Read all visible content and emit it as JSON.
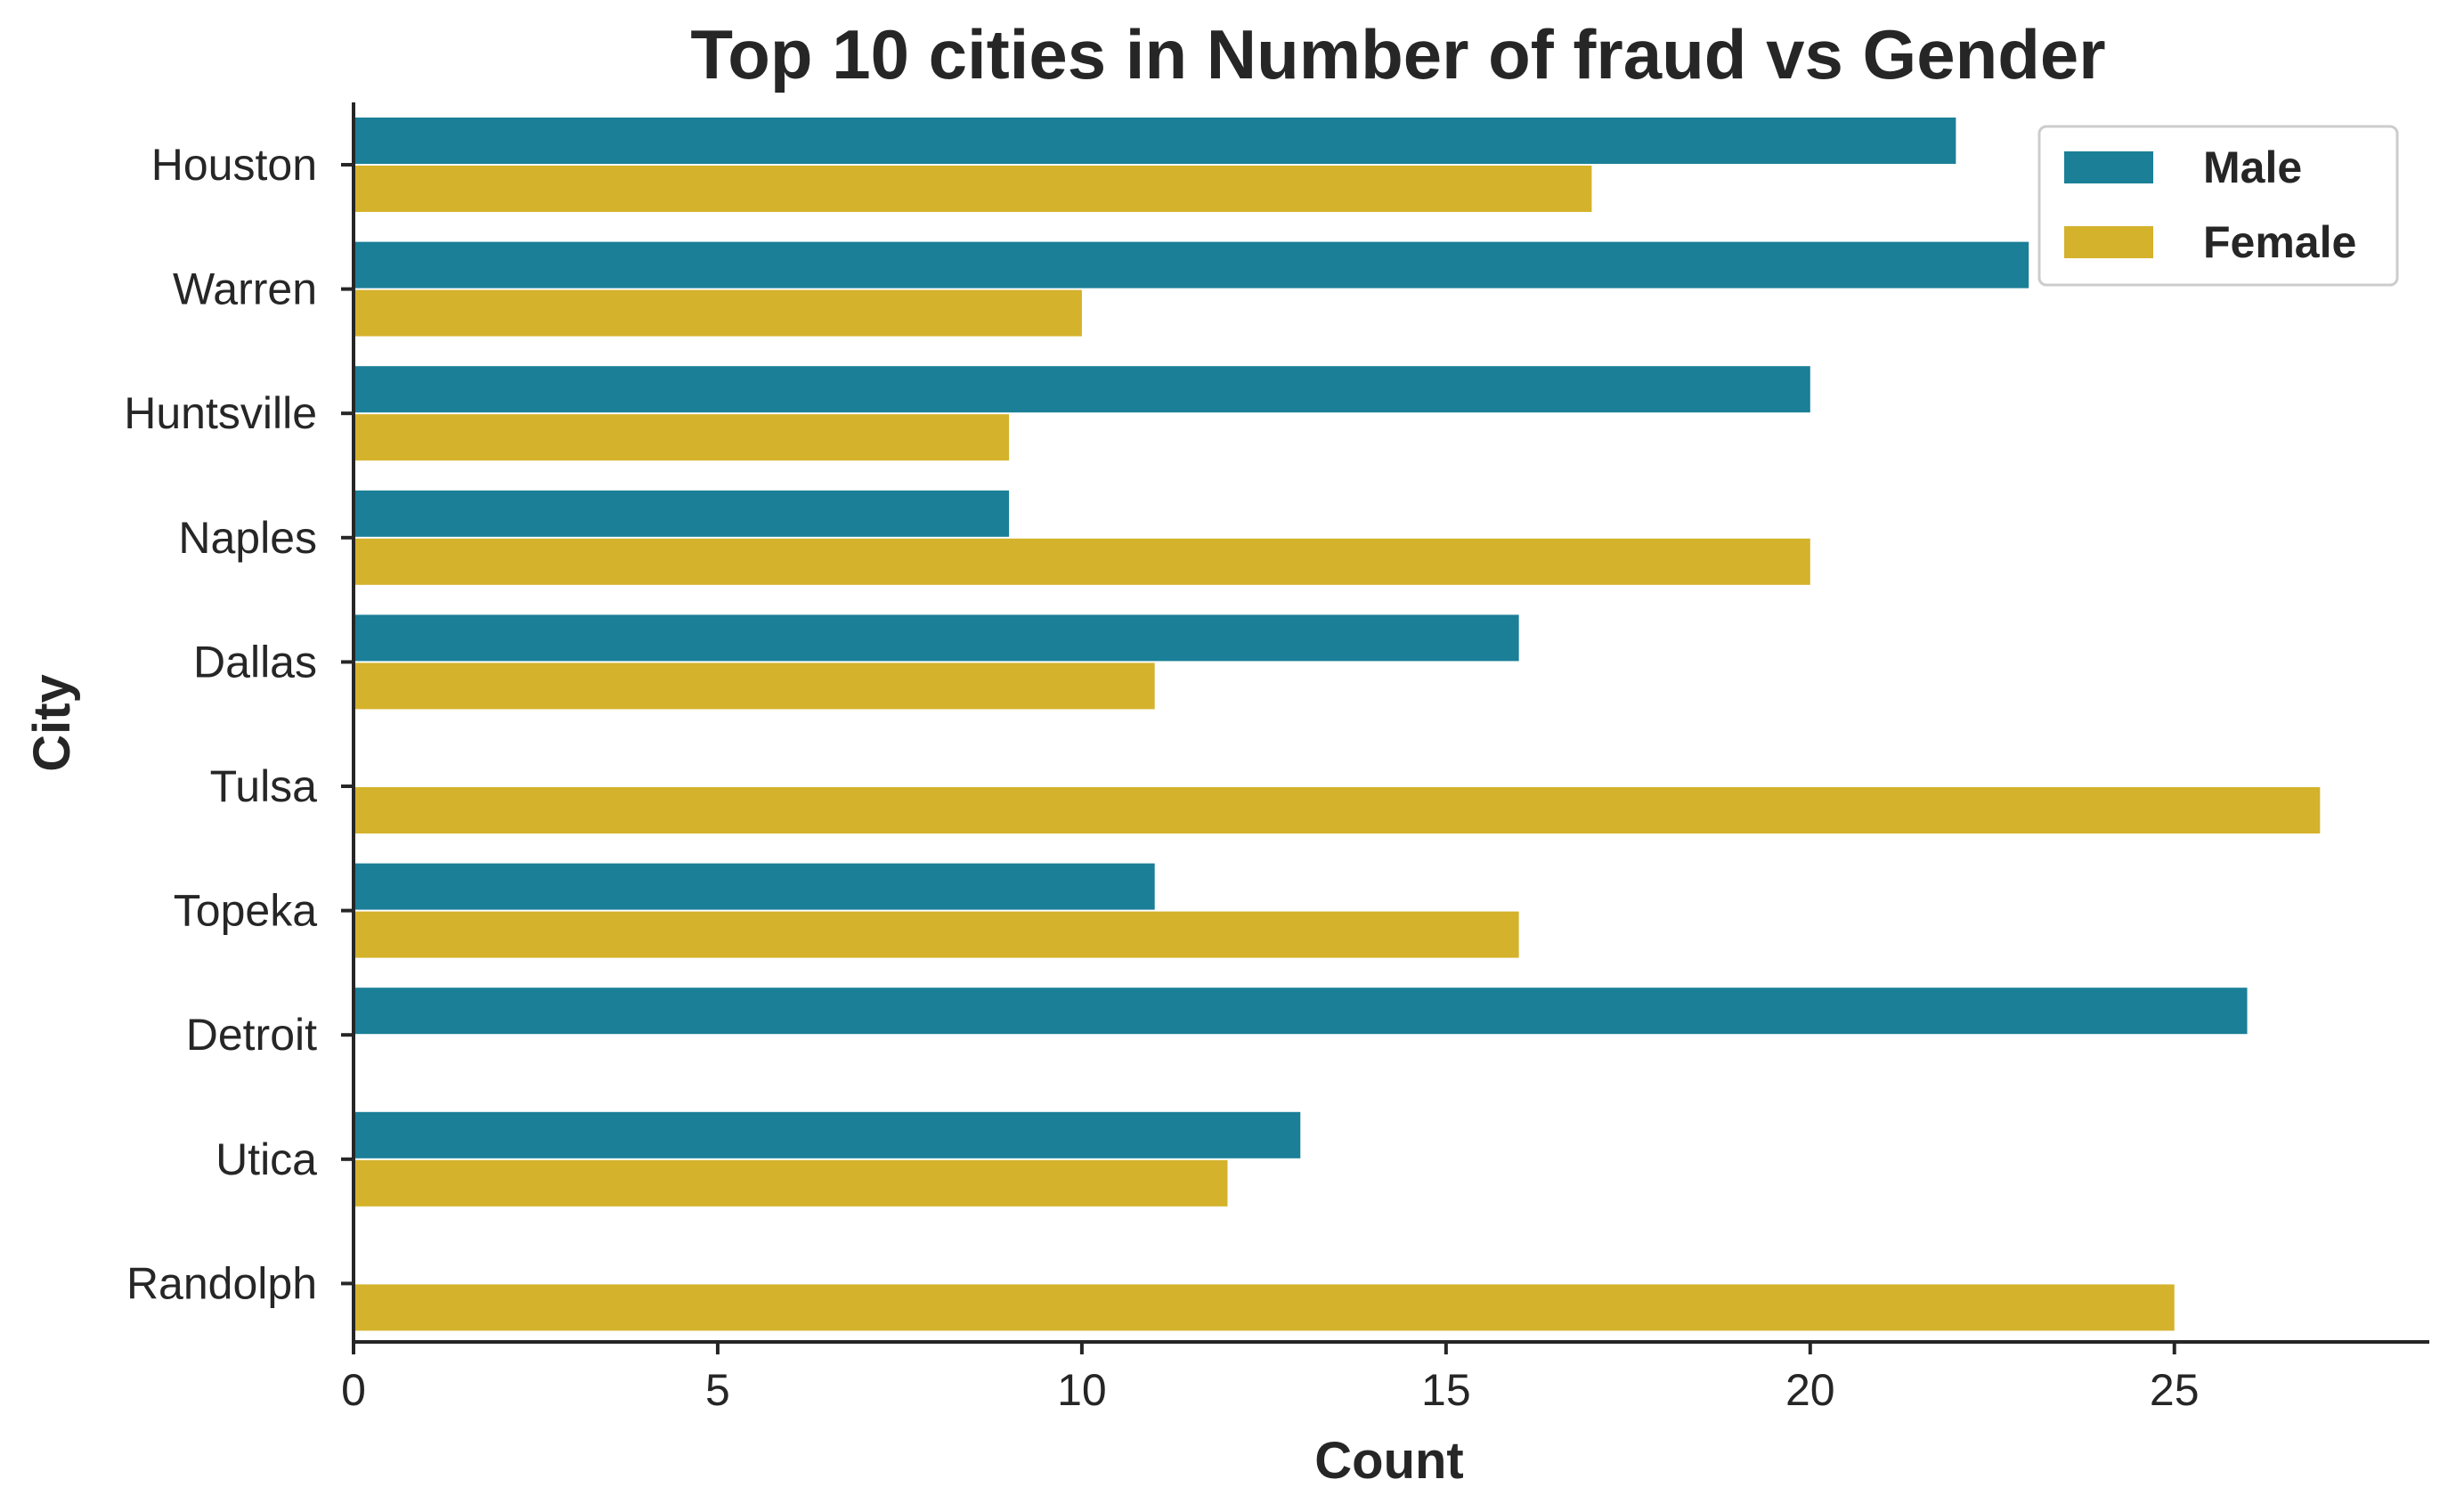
{
  "chart_data": {
    "type": "bar",
    "orientation": "horizontal",
    "title": "Top 10 cities in Number of fraud vs Gender",
    "xlabel": "Count",
    "ylabel": "City",
    "xlim": [
      0,
      28.5
    ],
    "xticks": [
      0,
      5,
      10,
      15,
      20,
      25
    ],
    "categories": [
      "Houston",
      "Warren",
      "Huntsville",
      "Naples",
      "Dallas",
      "Tulsa",
      "Topeka",
      "Detroit",
      "Utica",
      "Randolph"
    ],
    "series": [
      {
        "name": "Male",
        "color": "#1a7f97",
        "values": [
          22,
          23,
          20,
          9,
          16,
          0,
          11,
          26,
          13,
          0
        ]
      },
      {
        "name": "Female",
        "color": "#d4b22b",
        "values": [
          17,
          10,
          9,
          20,
          11,
          27,
          16,
          0,
          12,
          25
        ]
      }
    ],
    "legend": {
      "position": "top-right"
    },
    "grid": false
  }
}
